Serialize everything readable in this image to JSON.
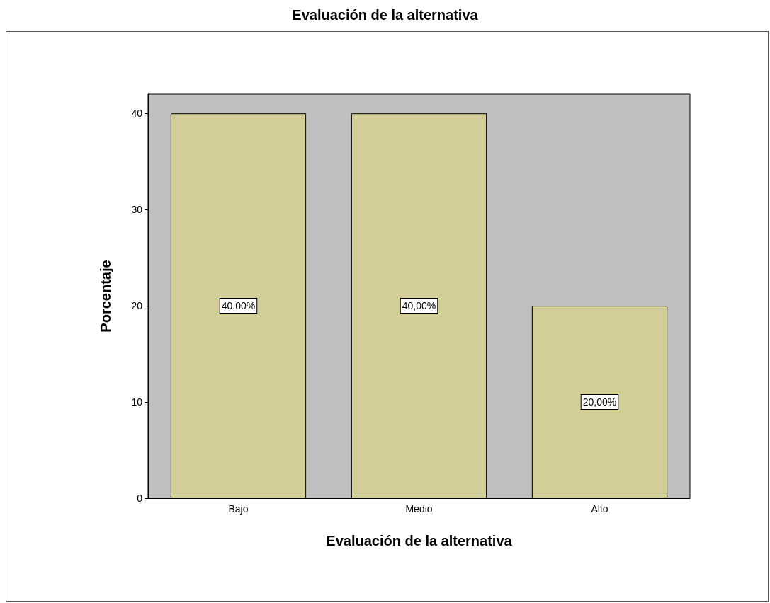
{
  "chart_data": {
    "type": "bar",
    "title": "Evaluación de la alternativa",
    "xlabel": "Evaluación de la alternativa",
    "ylabel": "Porcentaje",
    "categories": [
      "Bajo",
      "Medio",
      "Alto"
    ],
    "values": [
      40,
      40,
      20
    ],
    "color": "#d3cd98",
    "value_labels": [
      "40,00%",
      "40,00%",
      "20,00%"
    ],
    "ylim": [
      0,
      42
    ],
    "yticks": [
      0,
      10,
      20,
      30,
      40
    ],
    "grid": false
  }
}
